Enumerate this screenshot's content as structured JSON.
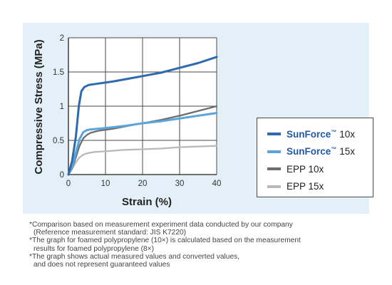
{
  "chart_data": {
    "type": "line",
    "xlabel": "Strain (%)",
    "ylabel": "Compressive Stress (MPa)",
    "xlim": [
      0,
      40
    ],
    "ylim": [
      0,
      2
    ],
    "x_ticks": [
      "0",
      "10",
      "20",
      "30",
      "40"
    ],
    "y_ticks": [
      "0",
      "0.5",
      "1",
      "1.5",
      "2"
    ],
    "grid": true,
    "legend_position": "right",
    "series": [
      {
        "name": "SunForce™ 10x",
        "color": "#2f6aaf",
        "points": [
          [
            0,
            0
          ],
          [
            1,
            0.2
          ],
          [
            2,
            0.55
          ],
          [
            2.8,
            1.0
          ],
          [
            3.5,
            1.22
          ],
          [
            4.3,
            1.28
          ],
          [
            5.5,
            1.31
          ],
          [
            8,
            1.33
          ],
          [
            12,
            1.36
          ],
          [
            16,
            1.4
          ],
          [
            20,
            1.44
          ],
          [
            25,
            1.49
          ],
          [
            30,
            1.56
          ],
          [
            35,
            1.63
          ],
          [
            40,
            1.72
          ]
        ]
      },
      {
        "name": "SunForce™ 15x",
        "color": "#5aa6dc",
        "points": [
          [
            0,
            0
          ],
          [
            1,
            0.12
          ],
          [
            2,
            0.32
          ],
          [
            3,
            0.52
          ],
          [
            4,
            0.62
          ],
          [
            5,
            0.65
          ],
          [
            6,
            0.66
          ],
          [
            10,
            0.68
          ],
          [
            15,
            0.71
          ],
          [
            20,
            0.75
          ],
          [
            25,
            0.78
          ],
          [
            30,
            0.82
          ],
          [
            35,
            0.86
          ],
          [
            40,
            0.9
          ]
        ]
      },
      {
        "name": "EPP 10x",
        "color": "#6d6d6d",
        "points": [
          [
            0,
            0
          ],
          [
            1,
            0.1
          ],
          [
            2,
            0.25
          ],
          [
            3,
            0.42
          ],
          [
            4,
            0.53
          ],
          [
            5,
            0.58
          ],
          [
            6,
            0.61
          ],
          [
            8,
            0.64
          ],
          [
            12,
            0.67
          ],
          [
            16,
            0.71
          ],
          [
            20,
            0.75
          ],
          [
            25,
            0.8
          ],
          [
            30,
            0.86
          ],
          [
            35,
            0.93
          ],
          [
            40,
            1.0
          ]
        ]
      },
      {
        "name": "EPP 15x",
        "color": "#b9b9b9",
        "points": [
          [
            0,
            0
          ],
          [
            1,
            0.08
          ],
          [
            2,
            0.18
          ],
          [
            3,
            0.25
          ],
          [
            4,
            0.29
          ],
          [
            5,
            0.31
          ],
          [
            7,
            0.33
          ],
          [
            10,
            0.34
          ],
          [
            15,
            0.36
          ],
          [
            20,
            0.37
          ],
          [
            25,
            0.38
          ],
          [
            30,
            0.4
          ],
          [
            35,
            0.41
          ],
          [
            40,
            0.42
          ]
        ]
      }
    ]
  },
  "legend": [
    {
      "brand": "SunForce",
      "tm": "™",
      "suffix": "10x",
      "color": "#2f6aaf"
    },
    {
      "brand": "SunForce",
      "tm": "™",
      "suffix": "15x",
      "color": "#5aa6dc"
    },
    {
      "brand": "",
      "tm": "",
      "suffix": "EPP 10x",
      "color": "#6d6d6d"
    },
    {
      "brand": "",
      "tm": "",
      "suffix": "EPP 15x",
      "color": "#b9b9b9"
    }
  ],
  "footnotes": [
    {
      "line1": "*Comparison based on measurement experiment data conducted by our company",
      "line2": "(Reference measurement standard: JIS K7220)"
    },
    {
      "line1": "*The graph for foamed polypropylene (10×) is calculated based on the measurement",
      "line2": "results for foamed polypropylene (8×)"
    },
    {
      "line1": "*The graph shows actual measured values and converted values,",
      "line2": "and does not represent guaranteed values"
    }
  ]
}
